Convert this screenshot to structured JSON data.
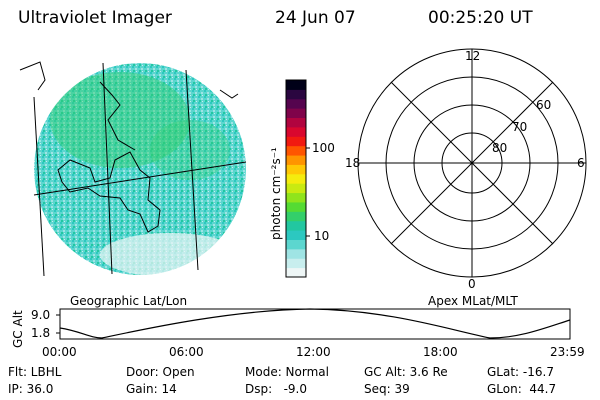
{
  "header": {
    "title": "Ultraviolet Imager",
    "date": "24 Jun 07",
    "time": "00:25:20 UT"
  },
  "colorbar": {
    "unit_label": "photon cm⁻²s⁻¹",
    "ticks": [
      "100",
      "10"
    ],
    "colors": [
      "#eef6f6",
      "#c8eeee",
      "#9fe4e4",
      "#5cd6cf",
      "#2cc8c0",
      "#22c7a0",
      "#33cf6a",
      "#55db33",
      "#90e41c",
      "#c9ea11",
      "#f5ec0e",
      "#ffc805",
      "#ff9400",
      "#ff5500",
      "#f11a10",
      "#d9072e",
      "#b1043f",
      "#7f034a",
      "#55044e",
      "#2a0640",
      "#000018"
    ]
  },
  "earth_panel": {
    "label": "Geographic Lat/Lon",
    "auroral_colors": [
      "#c8eeee",
      "#9fe4e4",
      "#5cd6cf",
      "#2cc8c0",
      "#22c7a0",
      "#33cf6a",
      "#55db33"
    ]
  },
  "polar_panel": {
    "label": "Apex MLat/MLT",
    "mlt_labels": [
      "12",
      "18",
      "6",
      "0"
    ],
    "mlat_labels": [
      "60",
      "70",
      "80"
    ]
  },
  "altitude_plot": {
    "y_axis_label": "GC Alt",
    "y_ticks": [
      "9.0",
      "1.8"
    ],
    "x_ticks": [
      "00:00",
      "06:00",
      "12:00",
      "18:00",
      "23:59"
    ]
  },
  "info": {
    "flt": "Flt: LBHL",
    "ip": "IP: 36.0",
    "door": "Door: Open",
    "gain": "Gain: 14",
    "mode": "Mode: Normal",
    "dsp": "Dsp:   -9.0",
    "gc_alt": "GC Alt: 3.6 Re",
    "seq": "Seq: 39",
    "glat": "GLat: -16.7",
    "glon": "GLon:  44.7"
  }
}
